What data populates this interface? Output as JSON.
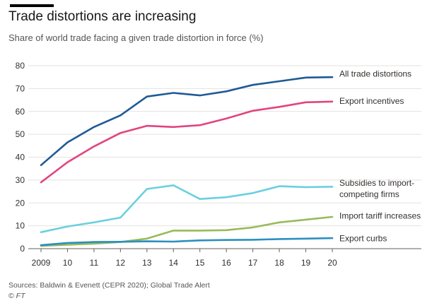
{
  "title": "Trade distortions are increasing",
  "subtitle": "Share of world trade facing a given trade distortion in force (%)",
  "source": "Sources: Baldwin & Evenett (CEPR 2020); Global Trade Alert",
  "credit_symbol": "©",
  "credit": "FT",
  "chart_data": {
    "type": "line",
    "title": "Trade distortions are increasing",
    "subtitle": "Share of world trade facing a given trade distortion in force (%)",
    "x": [
      2009,
      2010,
      2011,
      2012,
      2013,
      2014,
      2015,
      2016,
      2017,
      2018,
      2019,
      2020
    ],
    "x_tick_labels": [
      "2009",
      "10",
      "11",
      "12",
      "13",
      "14",
      "15",
      "16",
      "17",
      "18",
      "19",
      "20"
    ],
    "xlim": [
      2009,
      2020
    ],
    "ylim": [
      0,
      80
    ],
    "y_ticks": [
      0,
      10,
      20,
      30,
      40,
      50,
      60,
      70,
      80
    ],
    "grid": true,
    "legend": "direct labels at line ends",
    "series": [
      {
        "name": "All trade distortions",
        "label_lines": [
          "All trade distortions"
        ],
        "color": "#1f5a96",
        "values": [
          36.5,
          46.5,
          53.2,
          58.3,
          66.5,
          68.1,
          67.0,
          68.8,
          71.6,
          73.2,
          74.8,
          75.0
        ],
        "label_y": 76.5
      },
      {
        "name": "Export incentives",
        "label_lines": [
          "Export incentives"
        ],
        "color": "#e2447f",
        "values": [
          29.0,
          37.8,
          44.7,
          50.6,
          53.7,
          53.2,
          54.0,
          56.9,
          60.3,
          62.0,
          64.0,
          64.3
        ],
        "label_y": 64.5
      },
      {
        "name": "Subsidies to import-competing firms",
        "label_lines": [
          "Subsidies to import-",
          "competing firms"
        ],
        "color": "#6bd0de",
        "values": [
          7.2,
          9.7,
          11.5,
          13.6,
          26.1,
          27.7,
          21.7,
          22.5,
          24.3,
          27.3,
          26.9,
          27.1
        ],
        "label_y": 28.7
      },
      {
        "name": "Import tariff increases",
        "label_lines": [
          "Import tariff increases"
        ],
        "color": "#98bb5a",
        "values": [
          1.2,
          1.7,
          2.2,
          2.9,
          4.4,
          7.9,
          7.9,
          8.1,
          9.3,
          11.5,
          12.7,
          13.9
        ],
        "label_y": 14.3
      },
      {
        "name": "Export curbs",
        "label_lines": [
          "Export curbs"
        ],
        "color": "#2c8fc0",
        "values": [
          1.5,
          2.5,
          2.9,
          3.0,
          3.2,
          3.1,
          3.6,
          3.8,
          3.9,
          4.2,
          4.4,
          4.6
        ],
        "label_y": 4.5
      }
    ]
  }
}
